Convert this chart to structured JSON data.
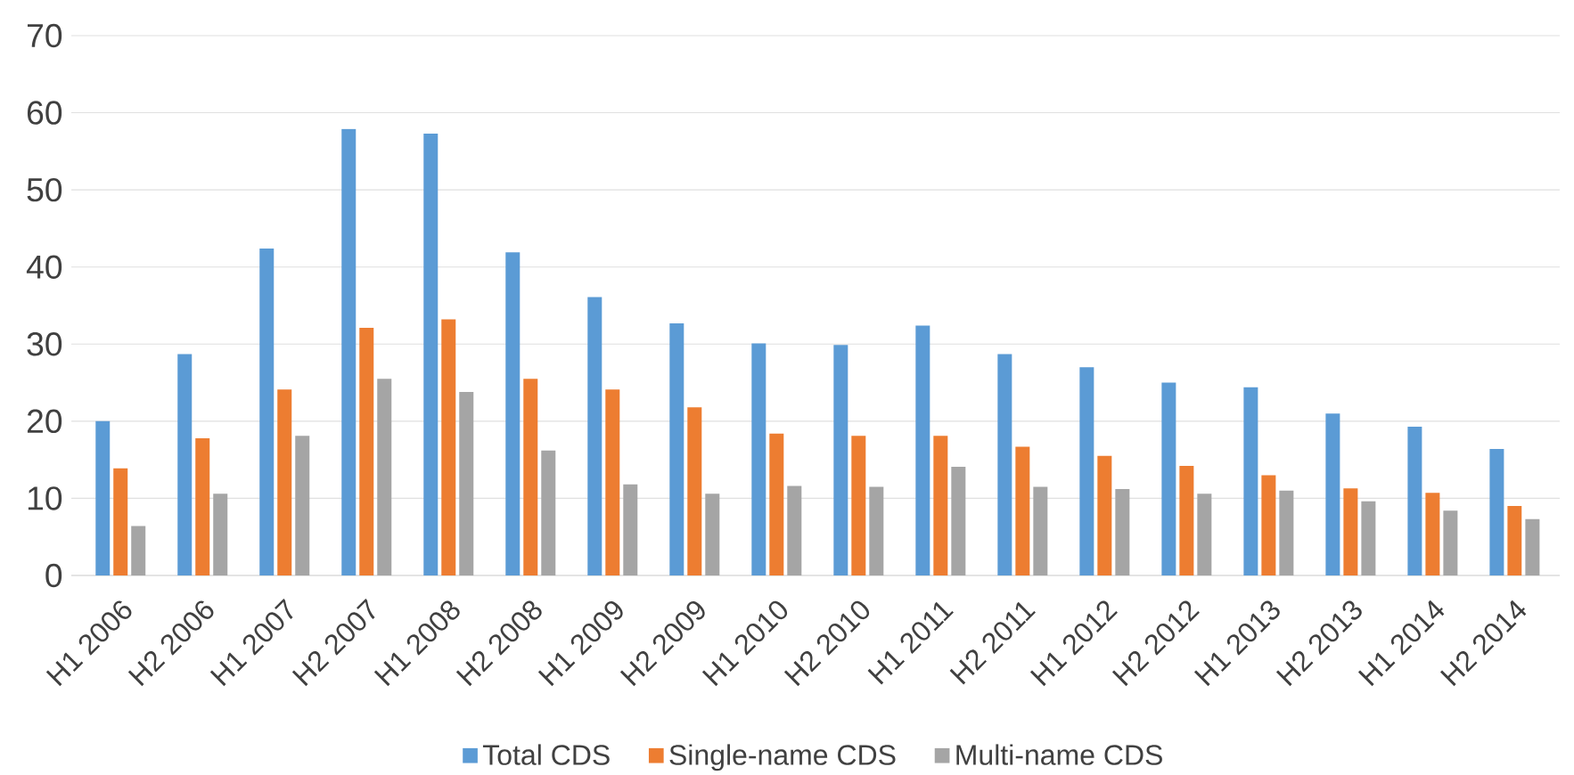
{
  "chart_data": {
    "type": "bar",
    "categories": [
      "H1 2006",
      "H2 2006",
      "H1 2007",
      "H2 2007",
      "H1 2008",
      "H2 2008",
      "H1 2009",
      "H2 2009",
      "H1 2010",
      "H2 2010",
      "H1 2011",
      "H2 2011",
      "H1 2012",
      "H2 2012",
      "H1 2013",
      "H2 2013",
      "H1 2014",
      "H2 2014"
    ],
    "series": [
      {
        "name": "Total CDS",
        "color": "#5b9bd5",
        "values": [
          20,
          28.7,
          42.4,
          57.9,
          57.3,
          41.9,
          36.1,
          32.7,
          30.1,
          29.9,
          32.4,
          28.7,
          27,
          25,
          24.4,
          21,
          19.3,
          16.4
        ]
      },
      {
        "name": "Single-name CDS",
        "color": "#ed7d31",
        "values": [
          13.9,
          17.8,
          24.1,
          32.1,
          33.2,
          25.5,
          24.1,
          21.8,
          18.4,
          18.1,
          18.1,
          16.7,
          15.5,
          14.2,
          13,
          11.3,
          10.7,
          9
        ]
      },
      {
        "name": "Multi-name CDS",
        "color": "#a5a5a5",
        "values": [
          6.4,
          10.6,
          18.1,
          25.5,
          23.8,
          16.2,
          11.8,
          10.6,
          11.6,
          11.5,
          14.1,
          11.5,
          11.2,
          10.6,
          11,
          9.6,
          8.4,
          7.3
        ]
      }
    ],
    "ylim": [
      0,
      70
    ],
    "yticks": [
      0,
      10,
      20,
      30,
      40,
      50,
      60,
      70
    ],
    "grid": "y",
    "legend": "bottom"
  }
}
